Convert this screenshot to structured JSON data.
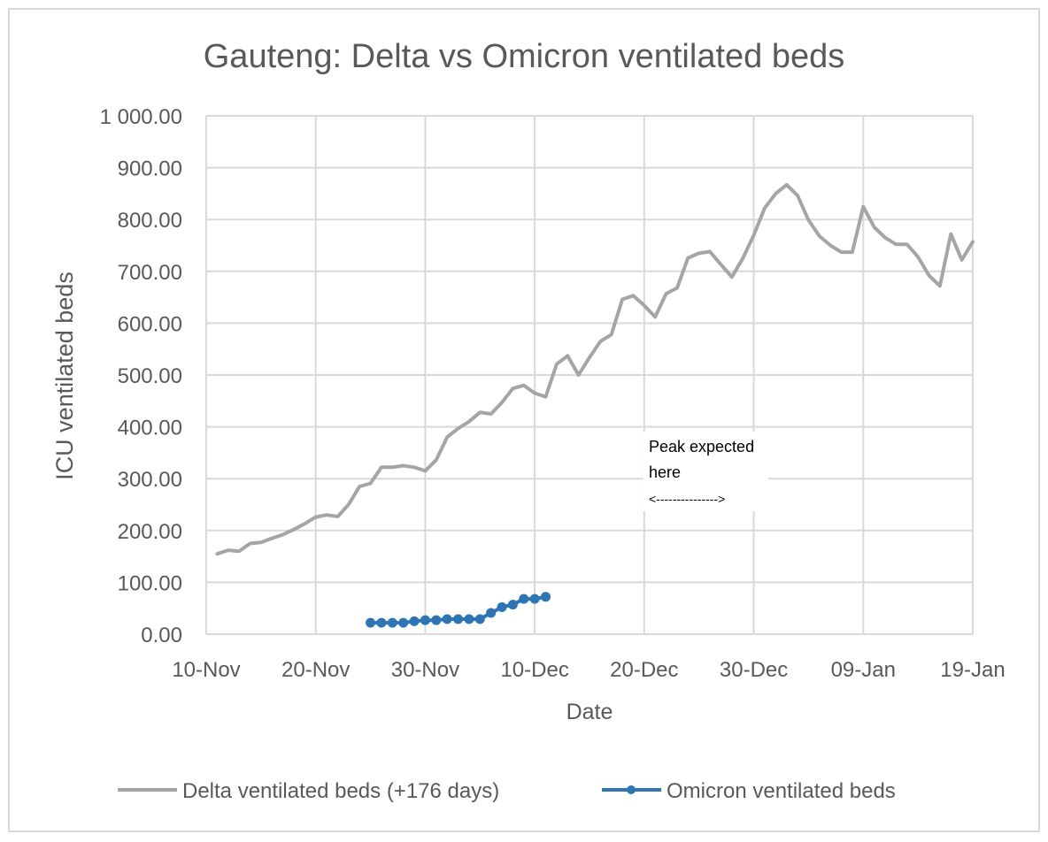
{
  "chart_data": {
    "type": "line",
    "title": "Gauteng: Delta vs Omicron ventilated beds",
    "xlabel": "Date",
    "ylabel": "ICU ventilated beds",
    "ylim": [
      0,
      1000
    ],
    "y_ticks": [
      "0.00",
      "100.00",
      "200.00",
      "300.00",
      "400.00",
      "500.00",
      "600.00",
      "700.00",
      "800.00",
      "900.00",
      "1 000.00"
    ],
    "x_range_days": [
      0,
      70
    ],
    "x_tick_labels": [
      "10-Nov",
      "20-Nov",
      "30-Nov",
      "10-Dec",
      "20-Dec",
      "30-Dec",
      "09-Jan",
      "19-Jan"
    ],
    "grid": true,
    "legend_position": "bottom",
    "series": [
      {
        "name": "Delta ventilated beds (+176 days)",
        "color": "#a5a5a5",
        "marker": "none",
        "x_start_day": 1,
        "values": [
          155,
          162,
          160,
          175,
          177,
          185,
          192,
          202,
          213,
          226,
          230,
          227,
          250,
          285,
          291,
          322,
          322,
          325,
          322,
          315,
          336,
          380,
          397,
          410,
          428,
          425,
          447,
          474,
          480,
          465,
          458,
          521,
          537,
          500,
          534,
          565,
          578,
          646,
          653,
          634,
          612,
          657,
          668,
          726,
          735,
          738,
          713,
          689,
          725,
          770,
          822,
          850,
          867,
          846,
          799,
          768,
          750,
          737,
          737,
          825,
          785,
          765,
          752,
          752,
          728,
          692,
          672,
          772,
          722,
          757
        ]
      },
      {
        "name": "Omicron ventilated beds",
        "color": "#2e75b6",
        "marker": "circle",
        "x_start_day": 15,
        "values": [
          22,
          22,
          22,
          22,
          25,
          27,
          27,
          29,
          29,
          29,
          29,
          41,
          52,
          57,
          68,
          68,
          72
        ]
      }
    ],
    "annotation": {
      "line1": "Peak expected",
      "line2": "here",
      "arrow": "<--------------->"
    }
  }
}
